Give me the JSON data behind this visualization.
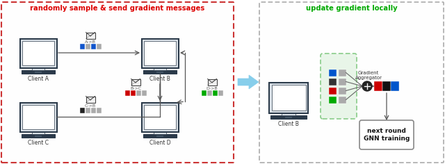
{
  "bg_color": "#ffffff",
  "title_left": "randomly sample & send gradient messages",
  "title_left_color": "#dd0000",
  "title_right": "update gradient locally",
  "title_right_color": "#00aa00",
  "gradient_label": "Gradient\nAggregator",
  "next_round_label": "next round\nGNN training",
  "left_border": "#cc3333",
  "right_border": "#aaaaaa",
  "monitor_edge": "#2b3a4a",
  "monitor_face": "#dde4ea",
  "screen_face": "#ffffff",
  "kbd_face": "#2b3a4a",
  "env_face": "#f0f0f0",
  "env_edge": "#444444",
  "arrow_line": "#555555",
  "agg_color": "#222222",
  "big_arrow_color": "#87ceeb",
  "colors_AB": [
    "#1155cc",
    "#aaaaaa",
    "#1155cc",
    "#aaaaaa"
  ],
  "colors_BC": [
    "#cc0000",
    "#cc0000",
    "#aaaaaa",
    "#aaaaaa"
  ],
  "colors_CB": [
    "#222222",
    "#aaaaaa",
    "#aaaaaa",
    "#aaaaaa"
  ],
  "colors_DB": [
    "#00aa00",
    "#aaaaaa",
    "#00aa00",
    "#aaaaaa"
  ],
  "colors_grid": [
    [
      "#00aa00",
      "#aaaaaa"
    ],
    [
      "#cc0000",
      "#aaaaaa"
    ],
    [
      "#333333",
      "#aaaaaa"
    ],
    [
      "#0055cc",
      "#aaaaaa"
    ]
  ],
  "colors_out": [
    "#cc0000",
    "#111111",
    "#0055cc"
  ]
}
